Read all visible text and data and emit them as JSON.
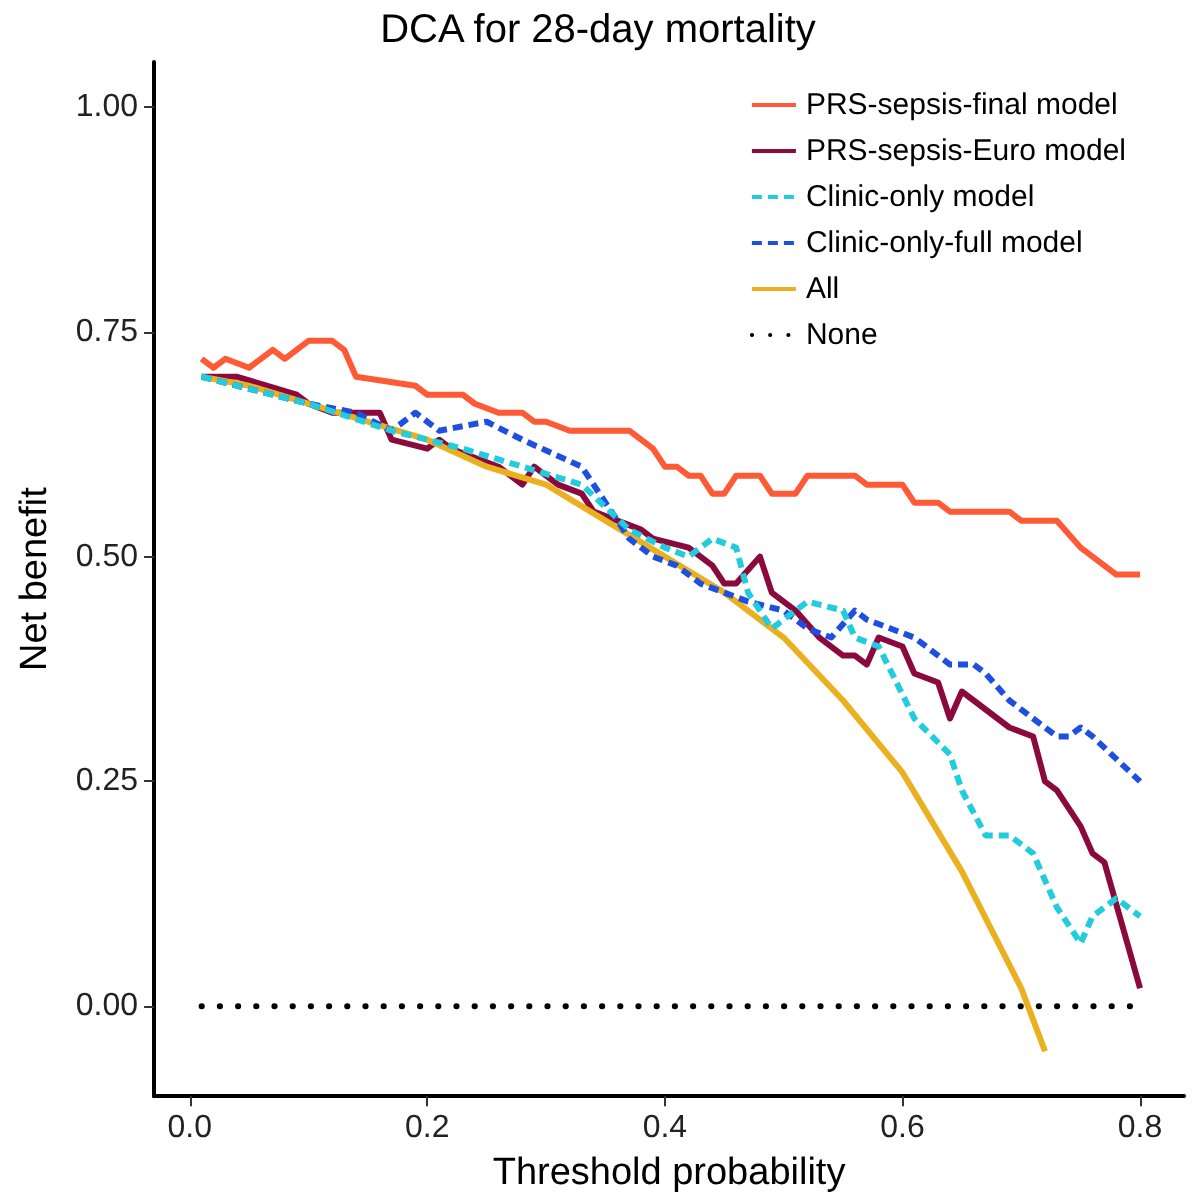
{
  "chart_data": {
    "type": "line",
    "title": "DCA for 28-day mortality",
    "xlabel": "Threshold probability",
    "ylabel": "Net benefit",
    "xlim": [
      -0.03,
      0.837
    ],
    "ylim": [
      -0.1,
      1.05
    ],
    "xticks": [
      {
        "value": 0,
        "label": "0.0"
      },
      {
        "value": 0.2,
        "label": "0.2"
      },
      {
        "value": 0.4,
        "label": "0.4"
      },
      {
        "value": 0.6,
        "label": "0.6"
      },
      {
        "value": 0.8,
        "label": "0.8"
      }
    ],
    "yticks": [
      {
        "value": 0,
        "label": "0.00"
      },
      {
        "value": 0.25,
        "label": "0.25"
      },
      {
        "value": 0.5,
        "label": "0.50"
      },
      {
        "value": 0.75,
        "label": "0.75"
      },
      {
        "value": 1,
        "label": "1.00"
      }
    ],
    "grid": false,
    "legend": "top right",
    "marker": "none",
    "series": [
      {
        "name": "PRS-sepsis-final model",
        "color": "#ff5a36",
        "line_style": "solid",
        "x": [
          0.01,
          0.02,
          0.03,
          0.05,
          0.07,
          0.08,
          0.09,
          0.1,
          0.12,
          0.13,
          0.14,
          0.19,
          0.2,
          0.23,
          0.24,
          0.26,
          0.27,
          0.28,
          0.29,
          0.3,
          0.32,
          0.33,
          0.37,
          0.39,
          0.4,
          0.41,
          0.42,
          0.43,
          0.44,
          0.45,
          0.46,
          0.48,
          0.49,
          0.51,
          0.52,
          0.56,
          0.57,
          0.6,
          0.61,
          0.63,
          0.64,
          0.69,
          0.7,
          0.73,
          0.75,
          0.76,
          0.78,
          0.8
        ],
        "values": [
          0.72,
          0.71,
          0.72,
          0.71,
          0.73,
          0.72,
          0.73,
          0.74,
          0.74,
          0.73,
          0.7,
          0.69,
          0.68,
          0.68,
          0.67,
          0.66,
          0.66,
          0.66,
          0.65,
          0.65,
          0.64,
          0.64,
          0.64,
          0.62,
          0.6,
          0.6,
          0.59,
          0.59,
          0.57,
          0.57,
          0.59,
          0.59,
          0.57,
          0.57,
          0.59,
          0.59,
          0.58,
          0.58,
          0.56,
          0.56,
          0.55,
          0.55,
          0.54,
          0.54,
          0.51,
          0.5,
          0.48,
          0.48
        ]
      },
      {
        "name": "PRS-sepsis-Euro model",
        "color": "#8b0a3e",
        "line_style": "solid",
        "x": [
          0.01,
          0.04,
          0.09,
          0.1,
          0.12,
          0.13,
          0.14,
          0.16,
          0.17,
          0.2,
          0.21,
          0.22,
          0.26,
          0.28,
          0.29,
          0.31,
          0.33,
          0.34,
          0.38,
          0.39,
          0.42,
          0.44,
          0.45,
          0.46,
          0.48,
          0.49,
          0.51,
          0.53,
          0.55,
          0.56,
          0.57,
          0.58,
          0.6,
          0.61,
          0.63,
          0.64,
          0.65,
          0.66,
          0.67,
          0.69,
          0.71,
          0.72,
          0.73,
          0.75,
          0.76,
          0.77,
          0.8
        ],
        "values": [
          0.7,
          0.7,
          0.68,
          0.67,
          0.66,
          0.66,
          0.66,
          0.66,
          0.63,
          0.62,
          0.63,
          0.62,
          0.6,
          0.58,
          0.6,
          0.58,
          0.57,
          0.55,
          0.53,
          0.52,
          0.51,
          0.49,
          0.47,
          0.47,
          0.5,
          0.46,
          0.44,
          0.41,
          0.39,
          0.39,
          0.38,
          0.41,
          0.4,
          0.37,
          0.36,
          0.32,
          0.35,
          0.34,
          0.33,
          0.31,
          0.3,
          0.25,
          0.24,
          0.2,
          0.17,
          0.16,
          0.02
        ]
      },
      {
        "name": "Clinic-only model",
        "color": "#22ccdd",
        "line_style": "dashed",
        "x": [
          0.01,
          0.1,
          0.17,
          0.23,
          0.28,
          0.33,
          0.37,
          0.4,
          0.42,
          0.44,
          0.46,
          0.47,
          0.49,
          0.52,
          0.55,
          0.56,
          0.58,
          0.61,
          0.64,
          0.65,
          0.67,
          0.69,
          0.71,
          0.73,
          0.75,
          0.76,
          0.78,
          0.8
        ],
        "values": [
          0.7,
          0.67,
          0.64,
          0.62,
          0.6,
          0.58,
          0.53,
          0.51,
          0.5,
          0.52,
          0.51,
          0.46,
          0.42,
          0.45,
          0.44,
          0.41,
          0.4,
          0.32,
          0.28,
          0.24,
          0.19,
          0.19,
          0.17,
          0.11,
          0.07,
          0.1,
          0.12,
          0.1
        ]
      },
      {
        "name": "Clinic-only-full model",
        "color": "#1f4fe0",
        "line_style": "dashed",
        "x": [
          0.01,
          0.1,
          0.14,
          0.17,
          0.19,
          0.21,
          0.25,
          0.28,
          0.33,
          0.34,
          0.37,
          0.39,
          0.41,
          0.43,
          0.45,
          0.47,
          0.5,
          0.52,
          0.54,
          0.56,
          0.57,
          0.59,
          0.61,
          0.64,
          0.66,
          0.67,
          0.69,
          0.73,
          0.74,
          0.75,
          0.76,
          0.8
        ],
        "values": [
          0.7,
          0.67,
          0.66,
          0.64,
          0.66,
          0.64,
          0.65,
          0.63,
          0.6,
          0.58,
          0.52,
          0.5,
          0.49,
          0.47,
          0.46,
          0.45,
          0.44,
          0.42,
          0.41,
          0.44,
          0.43,
          0.42,
          0.41,
          0.38,
          0.38,
          0.37,
          0.34,
          0.3,
          0.3,
          0.31,
          0.3,
          0.25
        ]
      },
      {
        "name": "All",
        "color": "#ebb020",
        "line_style": "solid",
        "x": [
          0.01,
          0.05,
          0.1,
          0.15,
          0.2,
          0.25,
          0.3,
          0.35,
          0.4,
          0.45,
          0.5,
          0.55,
          0.6,
          0.65,
          0.7,
          0.72
        ],
        "values": [
          0.7,
          0.69,
          0.67,
          0.65,
          0.63,
          0.6,
          0.58,
          0.54,
          0.5,
          0.46,
          0.41,
          0.34,
          0.26,
          0.15,
          0.02,
          -0.05
        ]
      },
      {
        "name": "None",
        "color": "#000000",
        "line_style": "dotted",
        "x": [
          0.01,
          0.8
        ],
        "values": [
          0,
          0
        ]
      }
    ]
  }
}
